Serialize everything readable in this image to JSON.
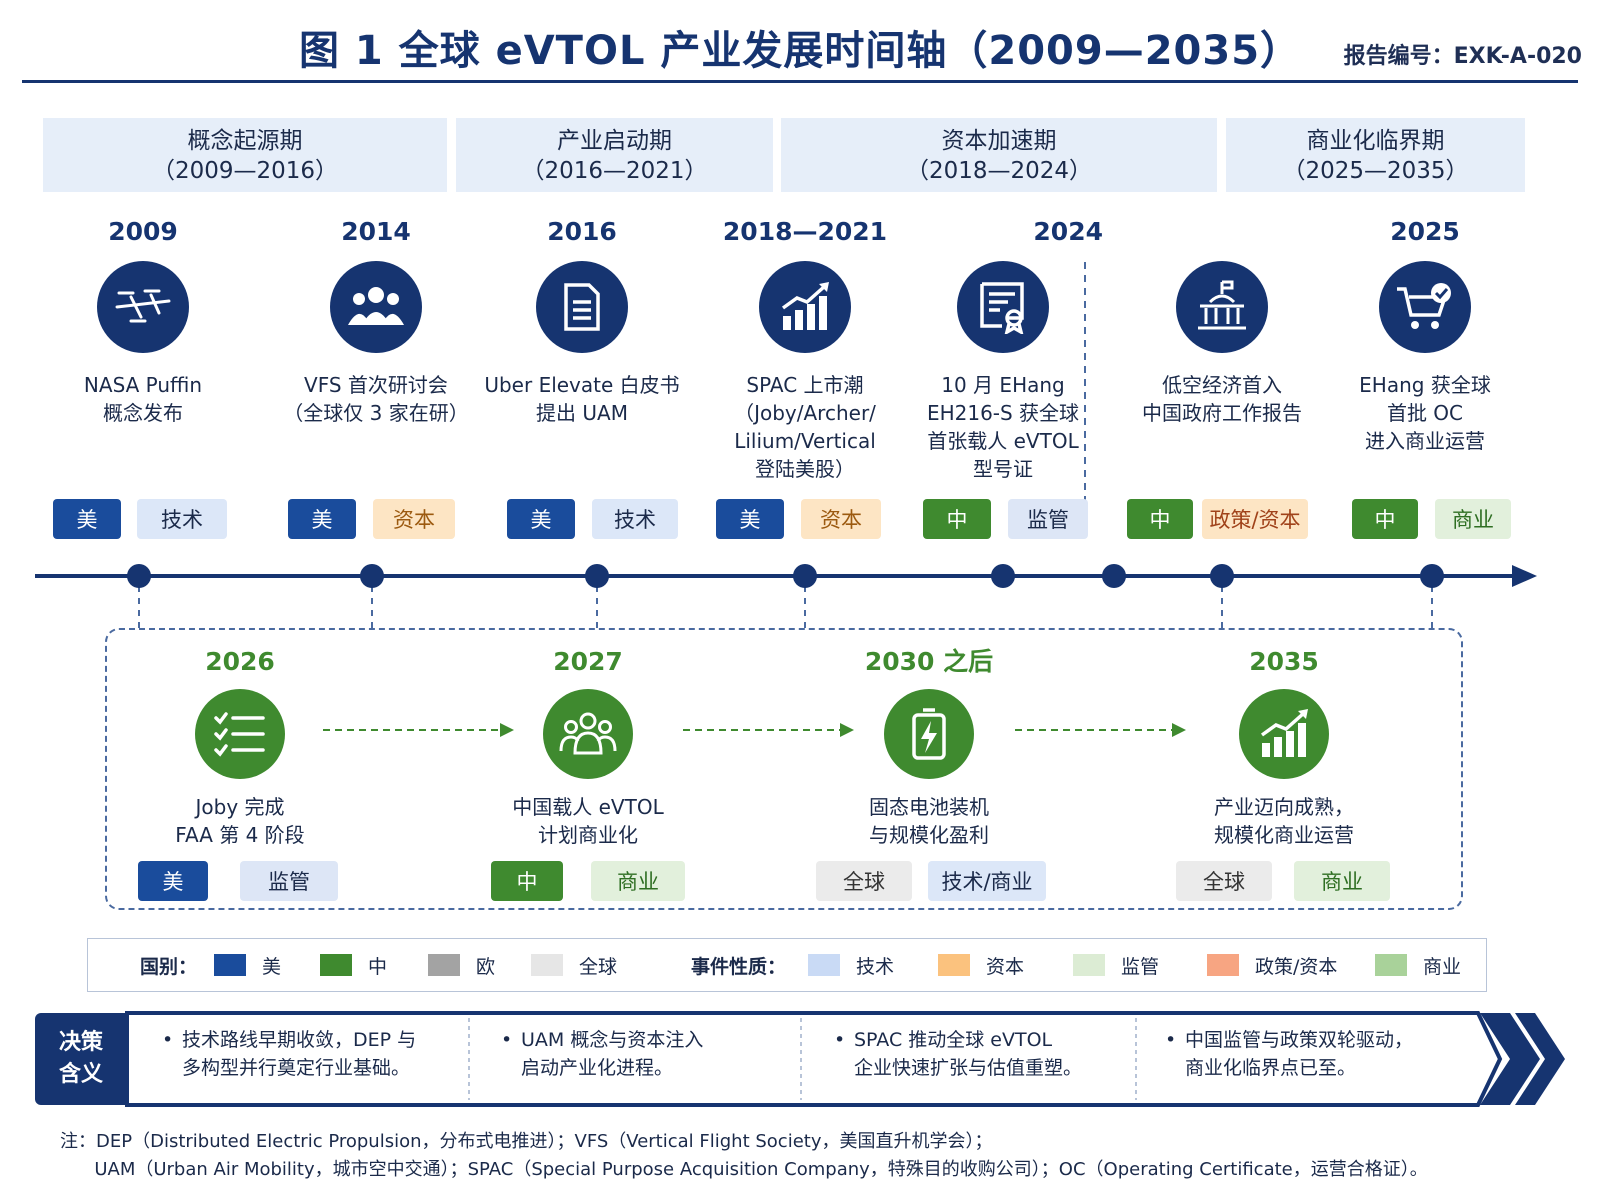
{
  "header": {
    "title": "图 1   全球 eVTOL 产业发展时间轴（2009—2035）",
    "report_id": "报告编号：EXK-A-020"
  },
  "phases": [
    {
      "name": "概念起源期",
      "range": "（2009—2016）"
    },
    {
      "name": "产业启动期",
      "range": "（2016—2021）"
    },
    {
      "name": "资本加速期",
      "range": "（2018—2024）"
    },
    {
      "name": "商业化临界期",
      "range": "（2025—2035）"
    }
  ],
  "events": [
    {
      "year": "2009",
      "icon": "evtol-aircraft-icon",
      "desc": "NASA Puffin\n概念发布",
      "tags": [
        "美",
        "技术"
      ]
    },
    {
      "year": "2014",
      "icon": "people-group-icon",
      "desc": "VFS 首次研讨会\n（全球仅 3 家在研）",
      "tags": [
        "美",
        "资本"
      ]
    },
    {
      "year": "2016",
      "icon": "document-icon",
      "desc": "Uber Elevate 白皮书\n提出 UAM",
      "tags": [
        "美",
        "技术"
      ]
    },
    {
      "year": "2018—2021",
      "icon": "growth-chart-icon",
      "desc": "SPAC 上市潮\n（Joby/Archer/\nLilium/Vertical\n登陆美股）",
      "tags": [
        "美",
        "资本"
      ]
    },
    {
      "year": "2024",
      "icon": "certificate-icon",
      "desc": "10 月 EHang\nEH216-S 获全球\n首张载人 eVTOL\n型号证",
      "tags": [
        "中",
        "监管"
      ]
    },
    {
      "year": "",
      "icon": "government-building-icon",
      "desc": "低空经济首入\n中国政府工作报告",
      "tags": [
        "中",
        "政策/资本"
      ]
    },
    {
      "year": "2025",
      "icon": "shopping-cart-check-icon",
      "desc": "EHang 获全球\n首批 OC\n进入商业运营",
      "tags": [
        "中",
        "商业"
      ]
    }
  ],
  "future_events": [
    {
      "year": "2026",
      "icon": "checklist-icon",
      "desc": "Joby 完成\nFAA 第 4 阶段",
      "tags": [
        "美",
        "监管"
      ]
    },
    {
      "year": "2027",
      "icon": "team-icon",
      "desc": "中国载人 eVTOL\n计划商业化",
      "tags": [
        "中",
        "商业"
      ]
    },
    {
      "year": "2030 之后",
      "icon": "battery-icon",
      "desc": "固态电池装机\n与规模化盈利",
      "tags": [
        "全球",
        "技术/商业"
      ]
    },
    {
      "year": "2035",
      "icon": "growth-chart-icon",
      "desc": "产业迈向成熟，\n规模化商业运营",
      "tags": [
        "全球",
        "商业"
      ]
    }
  ],
  "legend": {
    "country_label": "国别：",
    "countries": [
      {
        "label": "美",
        "color": "#1a4c9c"
      },
      {
        "label": "中",
        "color": "#3f8a2f"
      },
      {
        "label": "欧",
        "color": "#a3a3a3"
      },
      {
        "label": "全球",
        "color": "#e6e6e6"
      }
    ],
    "nature_label": "事件性质：",
    "natures": [
      {
        "label": "技术",
        "color": "#c9daf5"
      },
      {
        "label": "资本",
        "color": "#fbc27e"
      },
      {
        "label": "监管",
        "color": "#dcecd4"
      },
      {
        "label": "政策/资本",
        "color": "#f7a582"
      },
      {
        "label": "商业",
        "color": "#a9d29a"
      }
    ]
  },
  "implications": {
    "label": "决策\n含义",
    "items": [
      "技术路线早期收敛，DEP 与\n多构型并行奠定行业基础。",
      "UAM 概念与资本注入\n启动产业化进程。",
      "SPAC 推动全球 eVTOL\n企业快速扩张与估值重塑。",
      "中国监管与政策双轮驱动，\n商业化临界点已至。"
    ]
  },
  "notes": [
    "注：DEP（Distributed Electric Propulsion，分布式电推进）；VFS（Vertical Flight Society，美国直升机学会）；",
    "      UAM（Urban Air Mobility，城市空中交通）；SPAC（Special Purpose Acquisition Company，特殊目的收购公司）；OC（Operating Certificate，运营合格证）。"
  ],
  "colors": {
    "navy": "#163470",
    "green": "#3f8a2f"
  }
}
